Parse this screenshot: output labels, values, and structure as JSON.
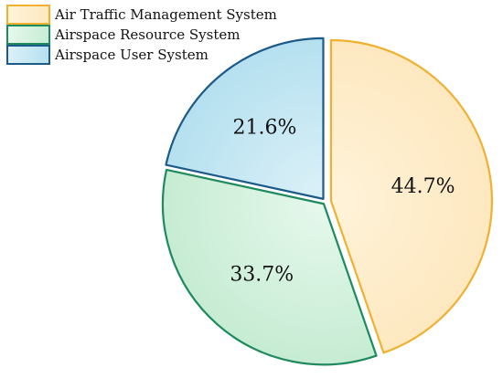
{
  "chart_data": {
    "type": "pie",
    "title": "",
    "legend_position": "top-left",
    "slices": [
      {
        "label": "Air Traffic Management System",
        "value": 44.7,
        "display": "44.7%",
        "fill_light": "#fff3d9",
        "fill_dark": "#fde8c0",
        "stroke": "#f0b030"
      },
      {
        "label": "Airspace Resource System",
        "value": 33.7,
        "display": "33.7%",
        "fill_light": "#e6f8ec",
        "fill_dark": "#c6ecd3",
        "stroke": "#1e8a5e"
      },
      {
        "label": "Airspace User System",
        "value": 21.6,
        "display": "21.6%",
        "fill_light": "#dcf1f8",
        "fill_dark": "#b5e0ef",
        "stroke": "#1c5a8a"
      }
    ]
  }
}
